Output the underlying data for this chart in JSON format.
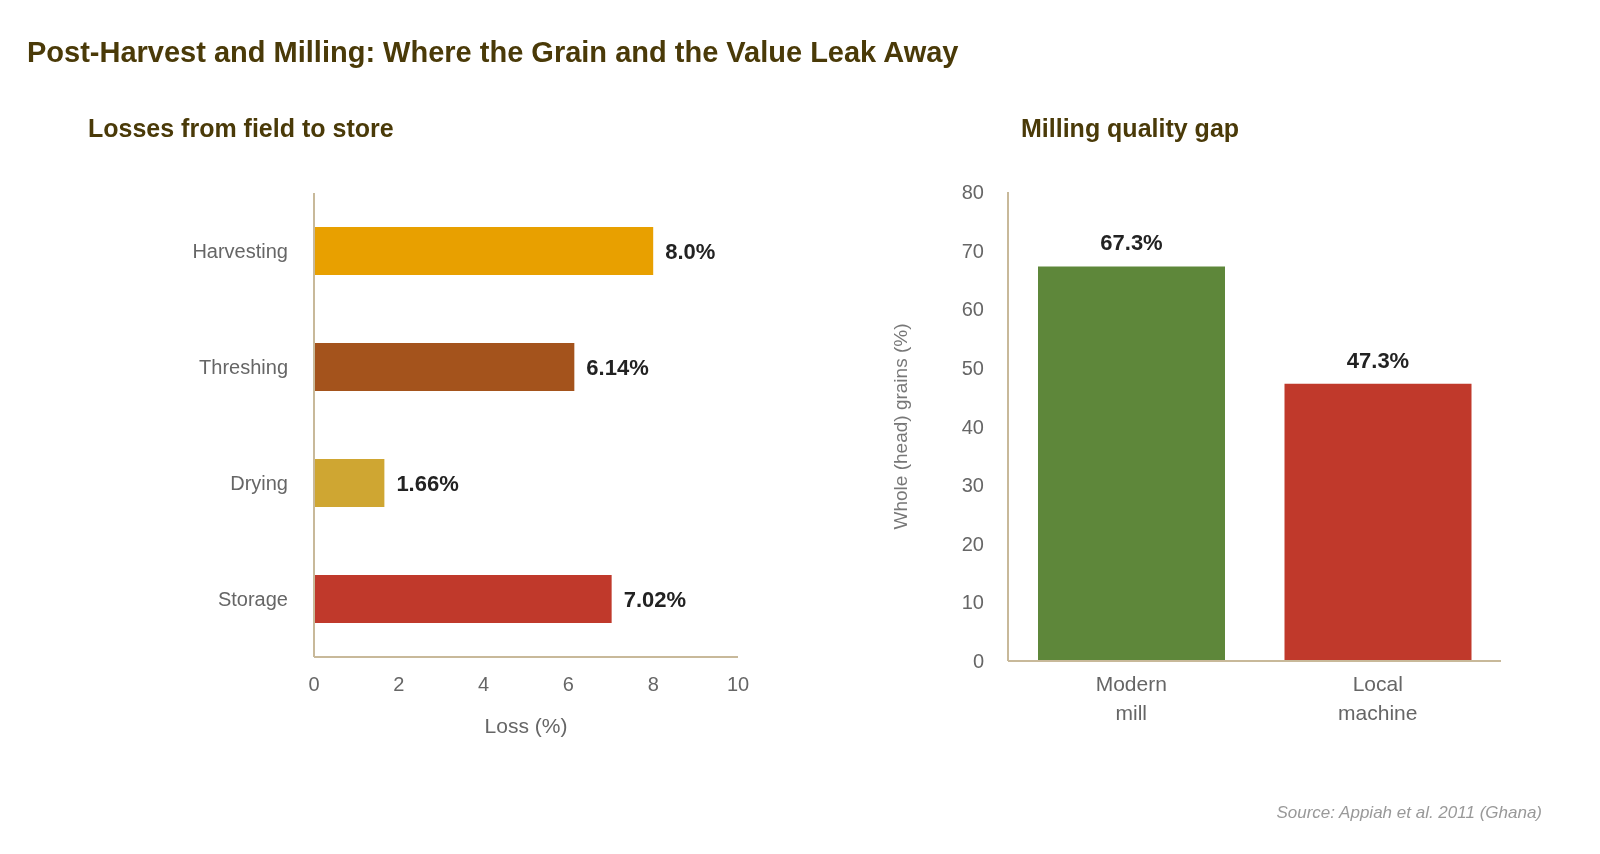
{
  "chart_data": [
    {
      "type": "bar",
      "title": "Post-Harvest and Milling: Where the Grain and the Value Leak Away",
      "subtitle": "Losses from field to store",
      "orientation": "horizontal",
      "categories": [
        "Harvesting",
        "Threshing",
        "Drying",
        "Storage"
      ],
      "values": [
        8.0,
        6.14,
        1.66,
        7.02
      ],
      "colors": [
        "#e8a000",
        "#a4531c",
        "#cfa632",
        "#c0392b"
      ],
      "value_labels": [
        "8.0%",
        "6.14%",
        "1.66%",
        "7.02%"
      ],
      "xlabel": "Loss (%)",
      "xlim": [
        0,
        10
      ],
      "xticks": [
        0,
        2,
        4,
        6,
        8,
        10
      ],
      "grid": false,
      "legend": false
    },
    {
      "type": "bar",
      "title": "Milling quality gap",
      "categories": [
        "Modern mill",
        "Local machine"
      ],
      "values": [
        67.3,
        47.3
      ],
      "colors": [
        "#5e873a",
        "#c0392b"
      ],
      "value_labels": [
        "67.3%",
        "47.3%"
      ],
      "ylabel": "Whole (head) grains (%)",
      "ylim": [
        0,
        80
      ],
      "yticks": [
        0,
        10,
        20,
        30,
        40,
        50,
        60,
        70,
        80
      ],
      "grid": false,
      "legend": false,
      "annotations": [
        "Source: Appiah et al. 2011 (Ghana)"
      ]
    }
  ]
}
